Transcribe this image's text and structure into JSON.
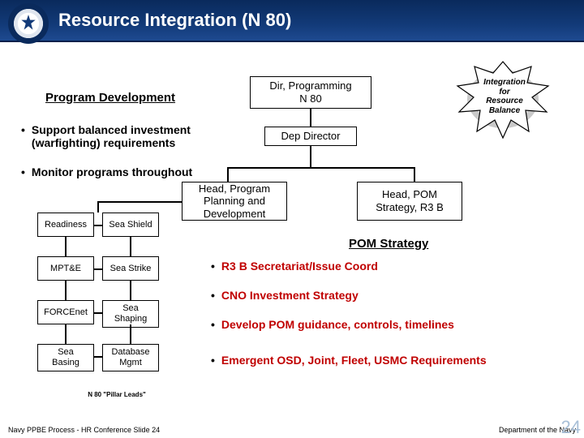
{
  "header": {
    "title": "Resource Integration (N 80)"
  },
  "left": {
    "section_title": "Program Development",
    "bullets": [
      "Support balanced investment (warfighting) requirements",
      "Monitor programs throughout"
    ]
  },
  "star": {
    "line1": "Integration",
    "line2": "for",
    "line3": "Resource",
    "line4": "Balance"
  },
  "org": {
    "dir": {
      "label": "Dir, Programming\nN 80"
    },
    "dep": {
      "label": "Dep Director"
    },
    "head1": {
      "label": "Head, Program\nPlanning and\nDevelopment"
    },
    "head2": {
      "label": "Head, POM\nStrategy, R3 B"
    },
    "grid": [
      [
        "Readiness",
        "Sea Shield"
      ],
      [
        "MPT&E",
        "Sea Strike"
      ],
      [
        "FORCEnet",
        "Sea\nShaping"
      ],
      [
        "Sea\nBasing",
        "Database\nMgmt"
      ]
    ],
    "pillar_leads": "N 80 \"Pillar Leads\"",
    "box_border": "#000000",
    "box_bg": "#ffffff"
  },
  "right": {
    "section_title": "POM Strategy",
    "bullets": [
      "R3 B Secretariat/Issue Coord",
      "CNO Investment Strategy",
      "Develop POM guidance, controls, timelines",
      "Emergent OSD, Joint, Fleet, USMC Requirements"
    ]
  },
  "footer": {
    "left": "Navy PPBE Process -  HR Conference   Slide 24",
    "right": "Department of the Navy",
    "bignum": "24"
  },
  "colors": {
    "header_grad_top": "#0a2a5c",
    "header_grad_bot": "#1e4a90",
    "red": "#c00000",
    "slide_num": "#a9c0d8"
  },
  "fonts": {
    "title_pt": 22,
    "section_pt": 15,
    "bullet_pt": 14,
    "box_pt": 11,
    "box_head_pt": 13,
    "footer_pt": 9
  }
}
